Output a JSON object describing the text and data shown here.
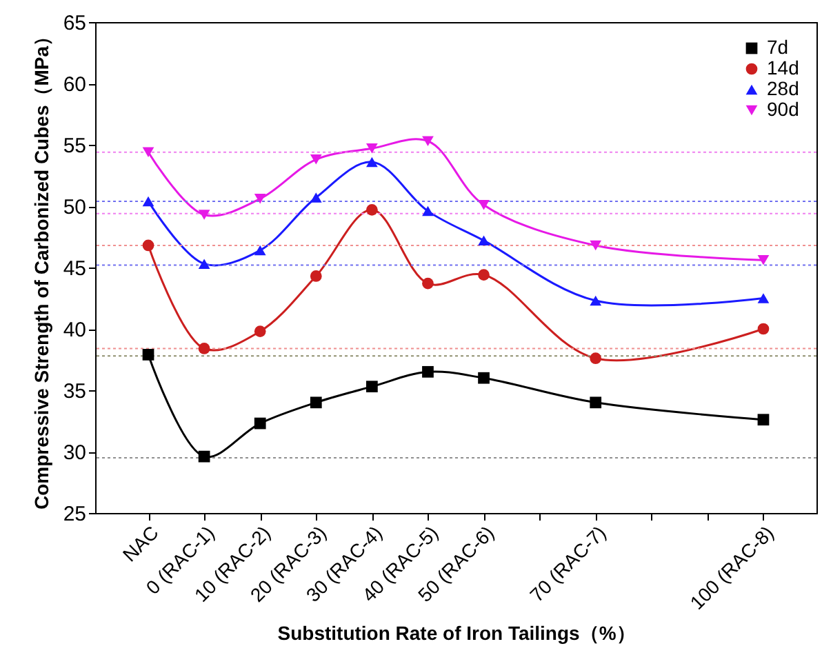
{
  "chart_data": {
    "type": "line",
    "xlabel": "Substitution Rate of Iron Tailings（%）",
    "ylabel": "Compressive Strength of Carbonized Cubes（MPa）",
    "categories": [
      "NAC",
      "0 (RAC-1)",
      "10 (RAC-2)",
      "20 (RAC-3)",
      "30 (RAC-4)",
      "40 (RAC-5)",
      "50 (RAC-6)",
      null,
      "70 (RAC-7)",
      null,
      null,
      "100 (RAC-8)"
    ],
    "series": [
      {
        "name": "7d",
        "color": "#000000",
        "marker": "square",
        "values": [
          37.9,
          29.6,
          32.3,
          34.0,
          35.3,
          36.5,
          36.0,
          null,
          34.0,
          null,
          null,
          32.6
        ]
      },
      {
        "name": "14d",
        "color": "#cc1f1f",
        "marker": "circle",
        "values": [
          46.8,
          38.4,
          39.8,
          44.3,
          49.7,
          43.7,
          44.4,
          null,
          37.6,
          null,
          null,
          40.0
        ]
      },
      {
        "name": "28d",
        "color": "#1a1aff",
        "marker": "triangle",
        "values": [
          50.4,
          45.3,
          46.4,
          50.7,
          53.6,
          49.6,
          47.2,
          null,
          42.3,
          null,
          null,
          42.5
        ]
      },
      {
        "name": "90d",
        "color": "#e619e6",
        "marker": "triangle-down",
        "values": [
          54.4,
          49.3,
          50.6,
          53.8,
          54.7,
          55.3,
          50.1,
          null,
          46.8,
          null,
          null,
          45.6
        ]
      }
    ],
    "ref_lines": [
      {
        "axis": "y",
        "value": 54.4,
        "color": "#f080f0",
        "line_style": "dotted"
      },
      {
        "axis": "y",
        "value": 49.4,
        "color": "#f080f0",
        "line_style": "dotted"
      },
      {
        "axis": "y",
        "value": 50.4,
        "color": "#7070f0",
        "line_style": "dotted"
      },
      {
        "axis": "y",
        "value": 45.2,
        "color": "#7070f0",
        "line_style": "dotted"
      },
      {
        "axis": "y",
        "value": 46.8,
        "color": "#f09090",
        "line_style": "dotted"
      },
      {
        "axis": "y",
        "value": 38.4,
        "color": "#f09090",
        "line_style": "dotted"
      },
      {
        "axis": "y",
        "value": 37.8,
        "color": "#909070",
        "line_style": "dotted"
      },
      {
        "axis": "y",
        "value": 29.5,
        "color": "#909090",
        "line_style": "dotted"
      }
    ],
    "ylim": [
      25,
      65
    ],
    "yticks": [
      25,
      30,
      35,
      40,
      45,
      50,
      55,
      60,
      65
    ],
    "grid": false,
    "legend": "top right"
  }
}
